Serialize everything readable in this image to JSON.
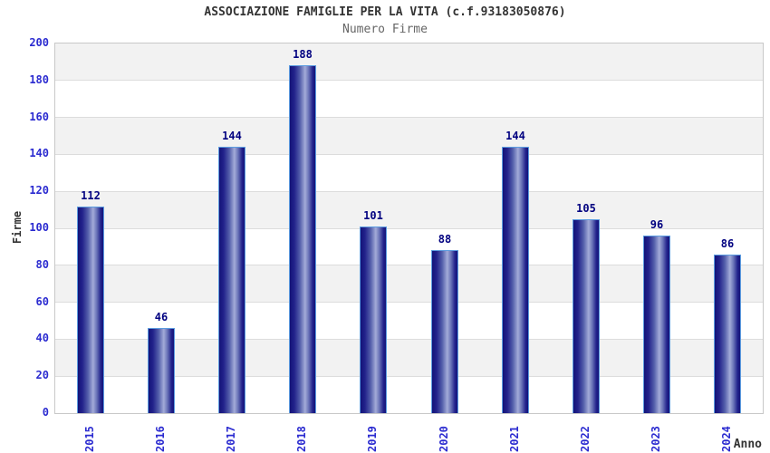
{
  "header": {
    "title": "ASSOCIAZIONE FAMIGLIE PER LA VITA (c.f.93183050876)",
    "subtitle": "Numero Firme"
  },
  "chart_data": {
    "type": "bar",
    "title": "ASSOCIAZIONE FAMIGLIE PER LA VITA (c.f.93183050876)",
    "subtitle": "Numero Firme",
    "categories": [
      "2015",
      "2016",
      "2017",
      "2018",
      "2019",
      "2020",
      "2021",
      "2022",
      "2023",
      "2024"
    ],
    "values": [
      112,
      46,
      144,
      188,
      101,
      88,
      144,
      105,
      96,
      86
    ],
    "xlabel": "Anno",
    "ylabel": "Firme",
    "ylim": [
      0,
      200
    ],
    "ytick_step": 20,
    "grid": true,
    "legend": "none",
    "colors": {
      "bar_dark": "#131378",
      "bar_mid": "#23238c",
      "bar_light": "#a3abd8",
      "bar_border": "#5c9ce0",
      "value_label": "#000080",
      "tick_label": "#2b2bd0",
      "band_gray": "#f2f2f2",
      "gridline": "#dcdcdc",
      "plot_border": "#c8c8c8"
    }
  }
}
